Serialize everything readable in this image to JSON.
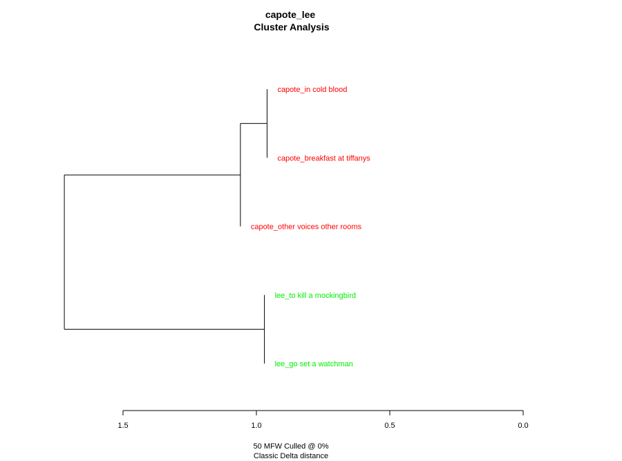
{
  "chart_data": {
    "type": "dendrogram",
    "title": "capote_lee",
    "subtitle": "Cluster Analysis",
    "leaves": [
      {
        "label": "capote_in cold blood",
        "color": "#ff0000"
      },
      {
        "label": "capote_breakfast at tiffanys",
        "color": "#ff0000"
      },
      {
        "label": "capote_other voices other rooms",
        "color": "#ff0000"
      },
      {
        "label": "lee_to kill a mockingbird",
        "color": "#00ee00"
      },
      {
        "label": "lee_go set a watchman",
        "color": "#00ee00"
      }
    ],
    "merges": [
      {
        "id": "n1",
        "children": [
          "leaf:0",
          "leaf:1"
        ],
        "height": 0.96
      },
      {
        "id": "n2",
        "children": [
          "node:n1",
          "leaf:2"
        ],
        "height": 1.06
      },
      {
        "id": "n3",
        "children": [
          "leaf:3",
          "leaf:4"
        ],
        "height": 0.97
      },
      {
        "id": "n4",
        "children": [
          "node:n2",
          "node:n3"
        ],
        "height": 1.72
      }
    ],
    "axis": {
      "direction": "reversed",
      "ticks": [
        1.5,
        1.0,
        0.5,
        0.0
      ],
      "tick_labels": [
        "1.5",
        "1.0",
        "0.5",
        "0.0"
      ]
    },
    "footer": {
      "line1": "50 MFW  Culled @ 0%",
      "line2": "Classic Delta distance"
    }
  }
}
